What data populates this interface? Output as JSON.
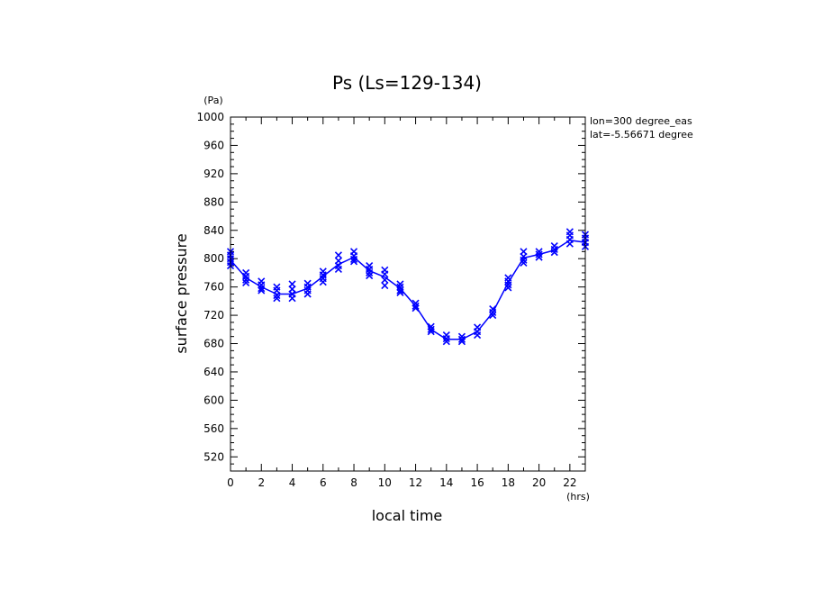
{
  "chart_data": {
    "type": "line",
    "title": "Ps (Ls=129-134)",
    "xlabel": "local time",
    "ylabel": "surface pressure",
    "x_unit": "(hrs)",
    "y_unit": "(Pa)",
    "xlim": [
      0,
      23
    ],
    "ylim": [
      500,
      1000
    ],
    "x_ticks": [
      0,
      2,
      4,
      6,
      8,
      10,
      12,
      14,
      16,
      18,
      20,
      22
    ],
    "y_ticks": [
      520,
      560,
      600,
      640,
      680,
      720,
      760,
      800,
      840,
      880,
      920,
      960,
      1000
    ],
    "annotations": [
      "lon=300 degree_eas",
      "lat=-5.56671 degree"
    ],
    "grid": false,
    "series": [
      {
        "style": "line",
        "color": "#0000ff",
        "x": [
          0,
          1,
          2,
          3,
          4,
          5,
          6,
          7,
          8,
          9,
          10,
          11,
          12,
          13,
          14,
          15,
          16,
          17,
          18,
          19,
          20,
          21,
          22,
          23
        ],
        "values": [
          798,
          773,
          760,
          750,
          750,
          758,
          775,
          792,
          802,
          783,
          774,
          758,
          733,
          700,
          686,
          686,
          697,
          724,
          766,
          801,
          806,
          812,
          826,
          823
        ]
      },
      {
        "style": "markers",
        "marker": "x",
        "color": "#0000ff",
        "points": [
          [
            0,
            810
          ],
          [
            0,
            805
          ],
          [
            0,
            800
          ],
          [
            0,
            795
          ],
          [
            0,
            790
          ],
          [
            1,
            780
          ],
          [
            1,
            775
          ],
          [
            1,
            770
          ],
          [
            1,
            766
          ],
          [
            2,
            768
          ],
          [
            2,
            763
          ],
          [
            2,
            758
          ],
          [
            2,
            755
          ],
          [
            3,
            760
          ],
          [
            3,
            755
          ],
          [
            3,
            748
          ],
          [
            3,
            744
          ],
          [
            4,
            764
          ],
          [
            4,
            757
          ],
          [
            4,
            750
          ],
          [
            4,
            744
          ],
          [
            5,
            765
          ],
          [
            5,
            760
          ],
          [
            5,
            755
          ],
          [
            5,
            750
          ],
          [
            6,
            782
          ],
          [
            6,
            777
          ],
          [
            6,
            772
          ],
          [
            6,
            767
          ],
          [
            7,
            805
          ],
          [
            7,
            797
          ],
          [
            7,
            790
          ],
          [
            7,
            785
          ],
          [
            8,
            810
          ],
          [
            8,
            804
          ],
          [
            8,
            799
          ],
          [
            8,
            796
          ],
          [
            9,
            790
          ],
          [
            9,
            785
          ],
          [
            9,
            780
          ],
          [
            9,
            776
          ],
          [
            10,
            784
          ],
          [
            10,
            778
          ],
          [
            10,
            770
          ],
          [
            10,
            762
          ],
          [
            11,
            764
          ],
          [
            11,
            760
          ],
          [
            11,
            755
          ],
          [
            11,
            752
          ],
          [
            12,
            737
          ],
          [
            12,
            733
          ],
          [
            12,
            730
          ],
          [
            13,
            704
          ],
          [
            13,
            700
          ],
          [
            13,
            697
          ],
          [
            14,
            692
          ],
          [
            14,
            687
          ],
          [
            14,
            683
          ],
          [
            15,
            690
          ],
          [
            15,
            686
          ],
          [
            15,
            683
          ],
          [
            16,
            703
          ],
          [
            16,
            697
          ],
          [
            16,
            692
          ],
          [
            17,
            729
          ],
          [
            17,
            724
          ],
          [
            17,
            720
          ],
          [
            18,
            773
          ],
          [
            18,
            768
          ],
          [
            18,
            763
          ],
          [
            18,
            759
          ],
          [
            19,
            810
          ],
          [
            19,
            803
          ],
          [
            19,
            798
          ],
          [
            19,
            794
          ],
          [
            20,
            810
          ],
          [
            20,
            806
          ],
          [
            20,
            802
          ],
          [
            21,
            818
          ],
          [
            21,
            813
          ],
          [
            21,
            809
          ],
          [
            22,
            838
          ],
          [
            22,
            833
          ],
          [
            22,
            827
          ],
          [
            22,
            821
          ],
          [
            23,
            834
          ],
          [
            23,
            829
          ],
          [
            23,
            823
          ],
          [
            23,
            817
          ]
        ]
      }
    ]
  }
}
